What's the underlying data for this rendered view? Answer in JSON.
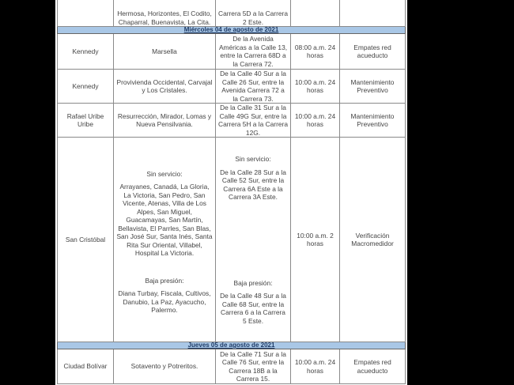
{
  "rows_top": {
    "neighborhoods": "Hermosa, Horizontes, El Codito, Chaparral, Buenavista, La Cita.",
    "area": "Carrera 5D a la Carrera 2 Este."
  },
  "day1": "Miércoles 04 de agosto de 2021",
  "rows_day1": [
    {
      "locality": "Kennedy",
      "neighborhoods": "Marsella",
      "area": "De la Avenida Américas a la Calle 13, entre la Carrera 68D a la Carrera 72.",
      "time": "08:00 a.m. 24 horas",
      "work": "Empates red acueducto"
    },
    {
      "locality": "Kennedy",
      "neighborhoods": "Provivienda Occidental, Carvajal y Los Cristales.",
      "area": "De la Calle 40 Sur a la Calle 26 Sur, entre la Avenida Carrera 72 a la Carrera 73.",
      "time": "10:00 a.m. 24 horas",
      "work": "Mantenimiento Preventivo"
    },
    {
      "locality": "Rafael Uribe Uribe",
      "neighborhoods": "Resurrección, Mirador, Lomas y Nueva Pensilvania.",
      "area": "De la Calle 31 Sur a la Calle 49G Sur, entre la Carrera 5H a la Carrera 12G.",
      "time": "10:00 a.m. 24 horas",
      "work": "Mantenimiento Preventivo"
    }
  ],
  "san_cristobal": {
    "locality": "San Cristóbal",
    "no_service_label": "Sin servicio:",
    "no_service_neighborhoods": "Arrayanes, Canadá, La Gloria, La Victoria, San Pedro, San Vicente, Atenas, Villa de Los Alpes, San Miguel, Guacamayas, San Martín, Bellavista, El Parrles, San Blas, San José Sur, Santa Inés, Santa Rita Sur Oriental, Villabel, Hospital La Victoria.",
    "no_service_area": "De la Calle 28 Sur a la Calle 52 Sur, entre la Carrera 6A Este a la Carrera 3A Este.",
    "low_pressure_label": "Baja presión:",
    "low_pressure_neighborhoods": "Diana Turbay, Fiscala, Cultivos, Danubio, La Paz, Ayacucho, Palermo.",
    "low_pressure_area": "De la Calle 48 Sur a la Calle 68 Sur, entre la Carrera 6 a la Carrera 5 Este.",
    "time": "10:00 a.m. 2 horas",
    "work": "Verificación Macromedidor"
  },
  "day2": "Jueves 05 de agosto de 2021",
  "rows_day2": [
    {
      "locality": "Ciudad Bolívar",
      "neighborhoods": "Sotavento y Potreritos.",
      "area": "De la Calle 71 Sur a la Calle 76 Sur, entre la Carrera 18B a la Carrera 15.",
      "time": "10:00 a.m. 24 horas",
      "work": "Empates red acueducto"
    }
  ]
}
